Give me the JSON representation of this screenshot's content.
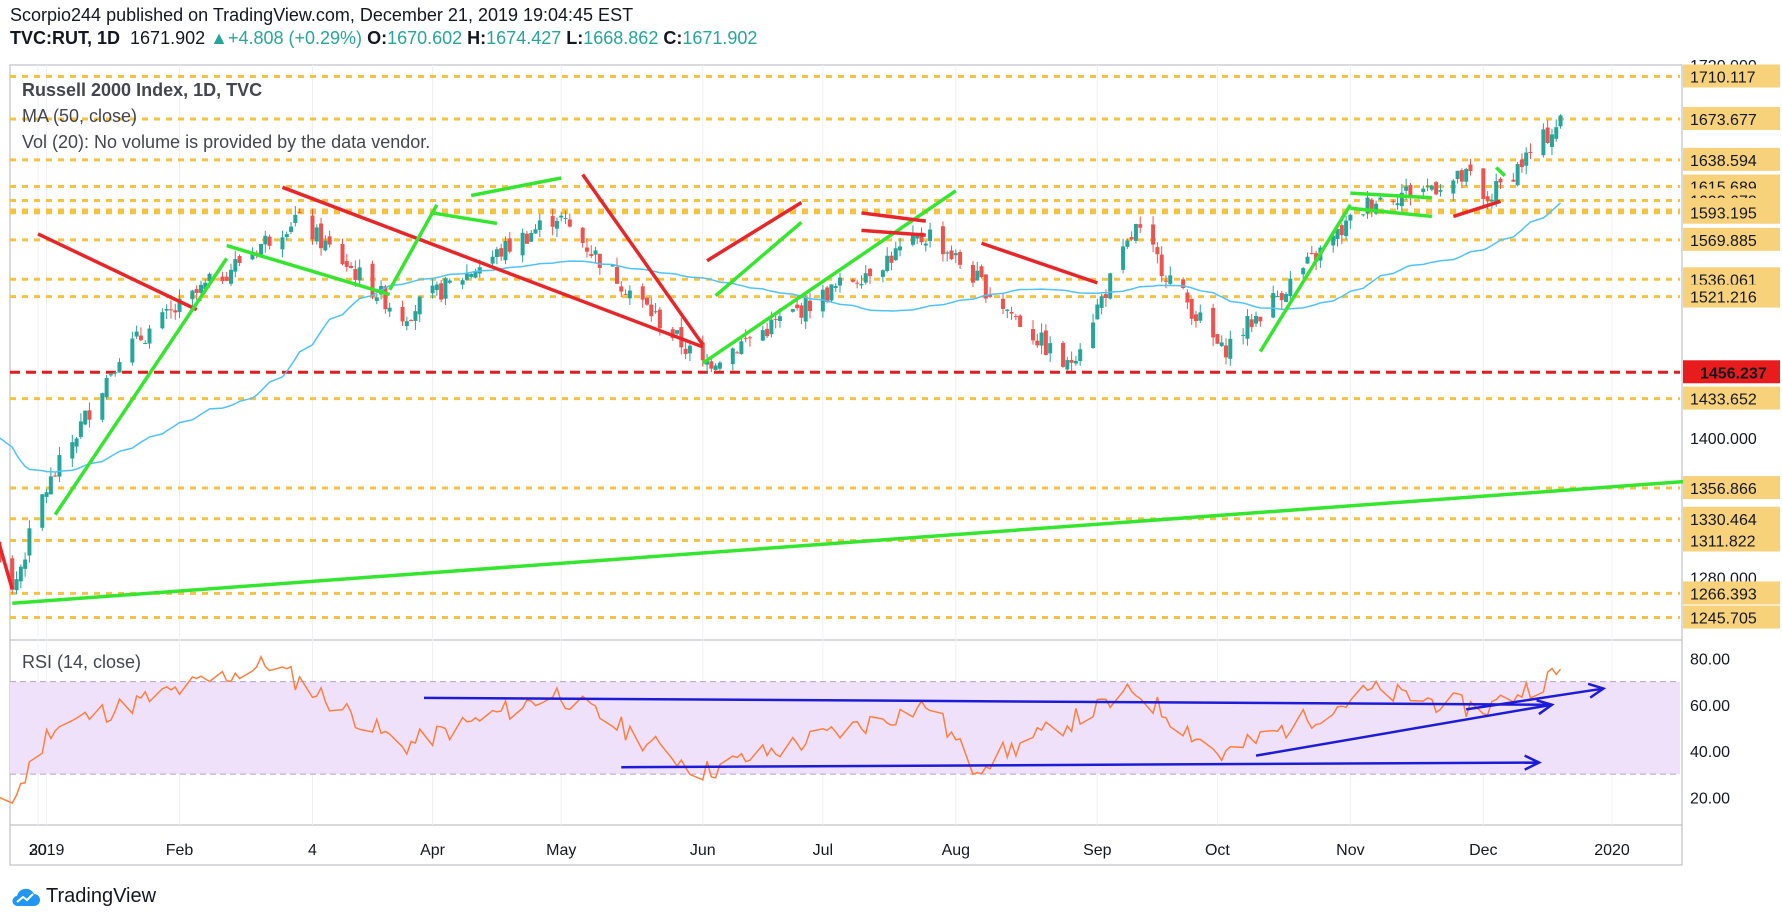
{
  "header": {
    "line1": "Scorpio244 published on TradingView.com, December 21, 2019 19:04:45 EST",
    "symbol": "TVC:RUT, 1D",
    "last": "1671.902",
    "change": "▲+4.808 (+0.29%)",
    "o_label": "O:",
    "o_val": "1670.602",
    "h_label": "H:",
    "h_val": "1674.427",
    "l_label": "L:",
    "l_val": "1668.862",
    "c_label": "C:",
    "c_val": "1671.902"
  },
  "legend": {
    "title": "Russell 2000 Index, 1D, TVC",
    "ma": "MA (50, close)",
    "vol": "Vol (20): No volume is provided by the data vendor.",
    "rsi": "RSI (14, close)"
  },
  "colors": {
    "up": "#26a69a",
    "down": "#ef5350",
    "level_dotted": "#f5c242",
    "support_red": "#e31b1b",
    "trend_green": "#35e62f",
    "trend_red": "#e8262a",
    "ma": "#4fc3f7",
    "rsi_line": "#ff7f3f",
    "rsi_band": "#f0e1fa",
    "rsi_arrows": "#1b1bd8"
  },
  "chart_data": [
    {
      "type": "line",
      "title": "Russell 2000 Index, 1D, TVC",
      "x_ticks": [
        "30",
        "2019",
        "Feb",
        "4",
        "Apr",
        "May",
        "Jun",
        "Jul",
        "Aug",
        "Sep",
        "Oct",
        "Nov",
        "Dec",
        "2020"
      ],
      "y_ticks": [
        1400.0
      ],
      "price_levels": [
        1710.117,
        1673.677,
        1638.594,
        1615.689,
        1603.678,
        1595.549,
        1593.195,
        1569.885,
        1536.061,
        1521.216,
        1433.652,
        1356.866,
        1330.464,
        1311.822,
        1266.393,
        1245.705
      ],
      "highlight_level": 1456.237,
      "partial_ticks": [
        "1720.000",
        "1280.000"
      ],
      "close_approx": [
        [
          "2018-12-24",
          1267
        ],
        [
          "2018-12-31",
          1349
        ],
        [
          "2019-01-18",
          1472
        ],
        [
          "2019-02-28",
          1589
        ],
        [
          "2019-03-25",
          1505
        ],
        [
          "2019-04-30",
          1591
        ],
        [
          "2019-06-03",
          1462
        ],
        [
          "2019-07-26",
          1575
        ],
        [
          "2019-08-27",
          1460
        ],
        [
          "2019-09-12",
          1579
        ],
        [
          "2019-10-02",
          1474
        ],
        [
          "2019-11-06",
          1604
        ],
        [
          "2019-11-29",
          1624
        ],
        [
          "2019-12-02",
          1601
        ],
        [
          "2019-12-20",
          1671.902
        ]
      ],
      "ma": {
        "name": "MA (50, close)"
      }
    },
    {
      "type": "line",
      "title": "RSI (14, close)",
      "y_ticks": [
        80.0,
        60.0,
        40.0,
        20.0
      ],
      "band": [
        30,
        70
      ],
      "values_approx": [
        [
          "2018-12-24",
          18
        ],
        [
          "2019-01-02",
          50
        ],
        [
          "2019-02-22",
          78
        ],
        [
          "2019-03-25",
          42
        ],
        [
          "2019-04-30",
          65
        ],
        [
          "2019-06-03",
          31
        ],
        [
          "2019-07-26",
          60
        ],
        [
          "2019-08-05",
          33
        ],
        [
          "2019-09-12",
          66
        ],
        [
          "2019-10-02",
          38
        ],
        [
          "2019-11-06",
          66
        ],
        [
          "2019-12-02",
          58
        ],
        [
          "2019-12-20",
          74
        ]
      ]
    }
  ],
  "logo": {
    "text": "TradingView"
  }
}
